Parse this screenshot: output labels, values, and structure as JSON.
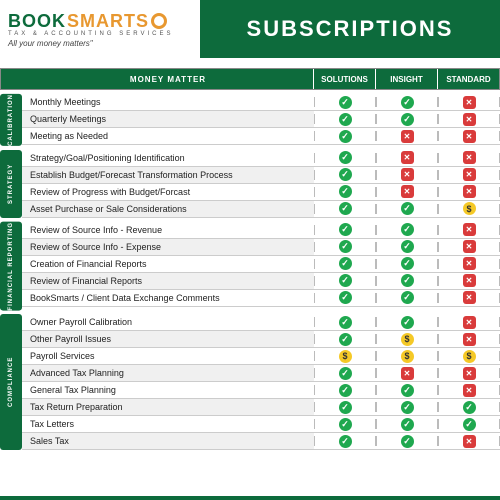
{
  "logo": {
    "p1": "BOOK",
    "p2": "SMARTS",
    "sub": "TAX & ACCOUNTING SERVICES",
    "tag": "All your money matters\""
  },
  "title": "SUBSCRIPTIONS",
  "colors": {
    "brand": "#0d6b3c",
    "accent": "#e89830",
    "check": "#1fa84f",
    "cross": "#d93b3b",
    "dollar": "#f5c927"
  },
  "headers": {
    "mm": "MONEY MATTER",
    "cols": [
      "SOLUTIONS",
      "INSIGHT",
      "STANDARD"
    ]
  },
  "icon_map": {
    "y": "check",
    "n": "cross",
    "d": "dollar"
  },
  "sections": [
    {
      "cat": "CALIBRATION",
      "rows": [
        {
          "l": "Monthly Meetings",
          "v": [
            "y",
            "y",
            "n"
          ]
        },
        {
          "l": "Quarterly Meetings",
          "v": [
            "y",
            "y",
            "n"
          ]
        },
        {
          "l": "Meeting as Needed",
          "v": [
            "y",
            "n",
            "n"
          ]
        }
      ]
    },
    {
      "cat": "STRATEGY",
      "rows": [
        {
          "l": "Strategy/Goal/Positioning Identification",
          "v": [
            "y",
            "n",
            "n"
          ]
        },
        {
          "l": "Establish Budget/Forecast Transformation Process",
          "v": [
            "y",
            "n",
            "n"
          ]
        },
        {
          "l": "Review of Progress with Budget/Forcast",
          "v": [
            "y",
            "n",
            "n"
          ]
        },
        {
          "l": "Asset Purchase or Sale Considerations",
          "v": [
            "y",
            "y",
            "d"
          ]
        }
      ]
    },
    {
      "cat": "FINANCIAL REPORTING",
      "rows": [
        {
          "l": "Review of Source Info - Revenue",
          "v": [
            "y",
            "y",
            "n"
          ]
        },
        {
          "l": "Review of Source Info - Expense",
          "v": [
            "y",
            "y",
            "n"
          ]
        },
        {
          "l": "Creation of Financial Reports",
          "v": [
            "y",
            "y",
            "n"
          ]
        },
        {
          "l": "Review of Financial Reports",
          "v": [
            "y",
            "y",
            "n"
          ]
        },
        {
          "l": "BookSmarts / Client Data Exchange Comments",
          "v": [
            "y",
            "y",
            "n"
          ]
        }
      ]
    },
    {
      "cat": "COMPLIANCE",
      "rows": [
        {
          "l": "Owner Payroll Calibration",
          "v": [
            "y",
            "y",
            "n"
          ]
        },
        {
          "l": "Other Payroll Issues",
          "v": [
            "y",
            "d",
            "n"
          ]
        },
        {
          "l": "Payroll Services",
          "v": [
            "d",
            "d",
            "d"
          ]
        },
        {
          "l": "Advanced Tax Planning",
          "v": [
            "y",
            "n",
            "n"
          ]
        },
        {
          "l": "General Tax Planning",
          "v": [
            "y",
            "y",
            "n"
          ]
        },
        {
          "l": "Tax Return Preparation",
          "v": [
            "y",
            "y",
            "y"
          ]
        },
        {
          "l": "Tax Letters",
          "v": [
            "y",
            "y",
            "y"
          ]
        },
        {
          "l": "Sales Tax",
          "v": [
            "y",
            "y",
            "n"
          ]
        }
      ]
    }
  ]
}
